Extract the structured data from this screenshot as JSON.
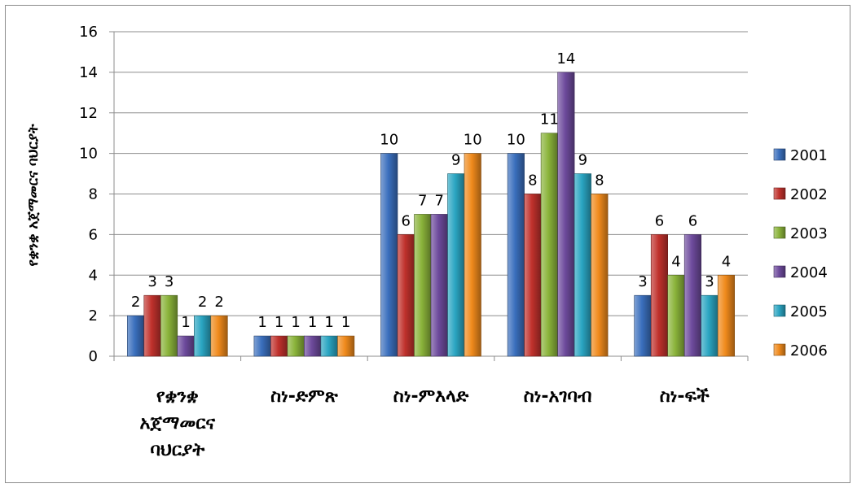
{
  "chart_data": {
    "type": "bar",
    "title": "",
    "xlabel": "",
    "ylabel": "የቋንቋ አጀማመርና ባህርያት",
    "ylim": [
      0,
      16
    ],
    "yticks": [
      0,
      2,
      4,
      6,
      8,
      10,
      12,
      14,
      16
    ],
    "grid": true,
    "legend_position": "right",
    "categories": [
      [
        "የቋንቋ",
        "አጀማመርና",
        "ባህርያት"
      ],
      [
        "ስነ-ድምጽ"
      ],
      [
        "ስነ-ምእላድ"
      ],
      [
        "ስነ-አገባብ"
      ],
      [
        "ስነ-ፍች"
      ]
    ],
    "series": [
      {
        "name": "2001",
        "color": "#3a6fbd",
        "values": [
          2,
          1,
          10,
          10,
          3
        ]
      },
      {
        "name": "2002",
        "color": "#c0312c",
        "values": [
          3,
          1,
          6,
          8,
          6
        ]
      },
      {
        "name": "2003",
        "color": "#8ab33a",
        "values": [
          3,
          1,
          7,
          11,
          4
        ]
      },
      {
        "name": "2004",
        "color": "#6d4a9c",
        "values": [
          1,
          1,
          7,
          14,
          6
        ]
      },
      {
        "name": "2005",
        "color": "#2aa5c2",
        "values": [
          2,
          1,
          9,
          9,
          3
        ]
      },
      {
        "name": "2006",
        "color": "#f08a1c",
        "values": [
          2,
          1,
          10,
          8,
          4
        ]
      }
    ]
  }
}
